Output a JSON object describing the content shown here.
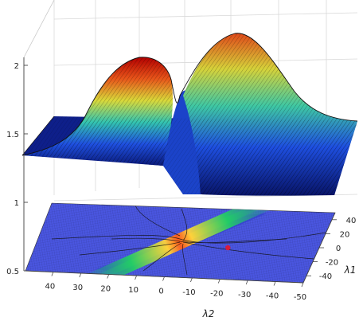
{
  "chart_data": {
    "type": "surface",
    "title": "",
    "xlabel": "λ1",
    "ylabel": "λ2",
    "zlabel": "",
    "xlim": [
      -50,
      50
    ],
    "ylim": [
      -50,
      50
    ],
    "zlim": [
      0.5,
      2
    ],
    "z_ticks": [
      "0.5",
      "1",
      "1.5",
      "2"
    ],
    "lambda1_ticks": [
      "40",
      "20",
      "0",
      "-20",
      "-40"
    ],
    "lambda2_ticks": [
      "40",
      "30",
      "20",
      "10",
      "0",
      "-10",
      "-20",
      "-30",
      "-40",
      "-50"
    ],
    "surface_profile": {
      "lambda2": [
        50,
        40,
        30,
        20,
        10,
        5,
        0,
        -5,
        -10,
        -20,
        -30,
        -40,
        -50
      ],
      "peak_z": [
        1.28,
        1.36,
        1.6,
        1.92,
        1.95,
        1.55,
        1.65,
        1.9,
        2.03,
        1.92,
        1.72,
        1.55,
        1.45
      ],
      "valley_z": [
        1.3,
        1.3,
        1.28,
        1.2,
        1.05,
        1.0,
        1.0,
        1.0,
        1.0,
        1.0,
        1.0,
        1.0,
        1.0
      ]
    },
    "projection": "filled contour of surface on floor plane",
    "marker": {
      "lambda1": -5,
      "lambda2": -18,
      "color": "#d81b3c"
    },
    "colormap": "jet",
    "grid": true,
    "legend": "none"
  }
}
